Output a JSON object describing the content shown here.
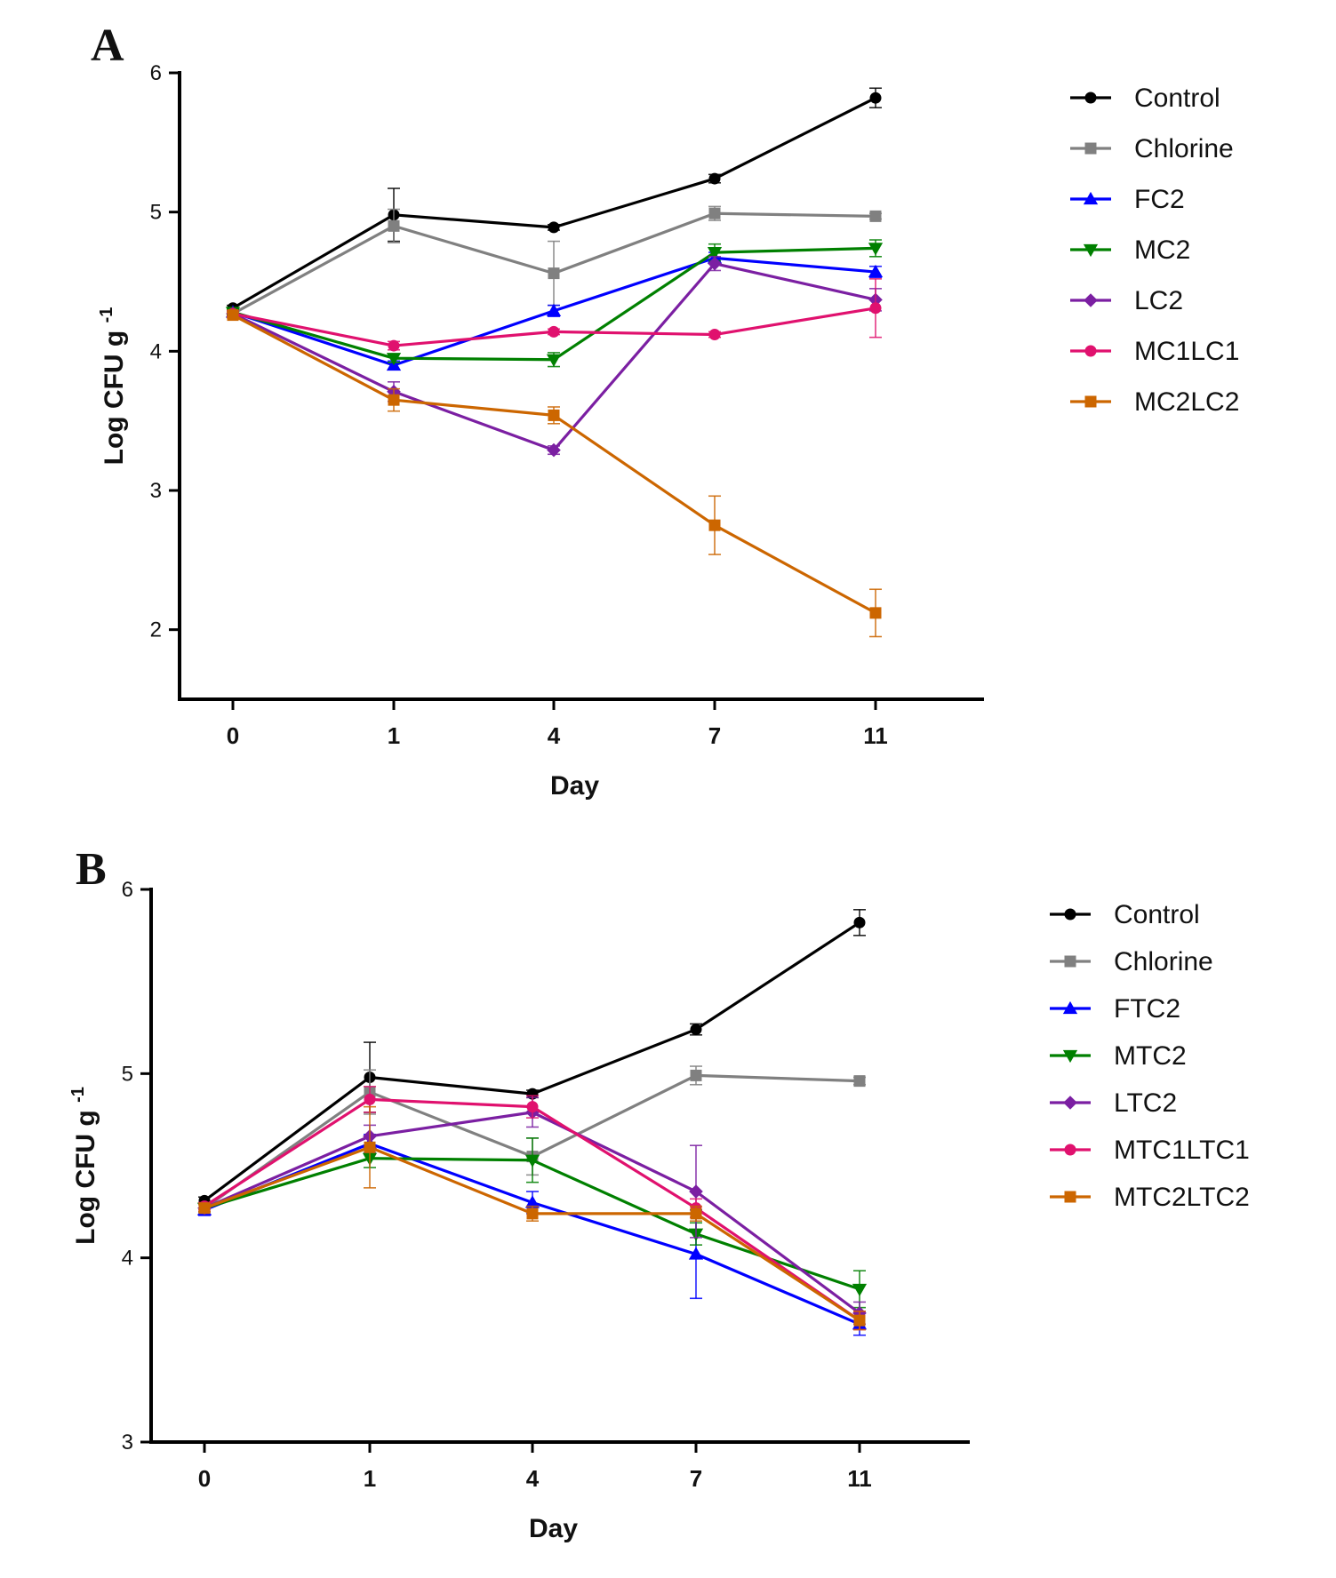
{
  "chart_data": [
    {
      "type": "line",
      "panel_label": "A",
      "xlabel": "Day",
      "ylabel": "Log CFU g",
      "ylabel_superscript": "-1",
      "categories": [
        "0",
        "1",
        "4",
        "7",
        "11"
      ],
      "ylim": [
        1.5,
        6
      ],
      "yticks": [
        2,
        3,
        4,
        5,
        6
      ],
      "grid": false,
      "legend_position": "right",
      "series": [
        {
          "name": "Control",
          "color": "#000000",
          "marker": "circle",
          "values": [
            4.31,
            4.98,
            4.89,
            5.24,
            5.82
          ],
          "errors": [
            0.02,
            0.19,
            0.02,
            0.03,
            0.07
          ]
        },
        {
          "name": "Chlorine",
          "color": "#808080",
          "marker": "square",
          "values": [
            4.27,
            4.9,
            4.56,
            4.99,
            4.97
          ],
          "errors": [
            0.02,
            0.12,
            0.23,
            0.05,
            0.02
          ]
        },
        {
          "name": "FC2",
          "color": "#0000ff",
          "marker": "triangle-up",
          "values": [
            4.28,
            3.9,
            4.29,
            4.67,
            4.57
          ],
          "errors": [
            0.02,
            0.03,
            0.04,
            0.04,
            0.04
          ]
        },
        {
          "name": "MC2",
          "color": "#008000",
          "marker": "triangle-down",
          "values": [
            4.28,
            3.95,
            3.94,
            4.71,
            4.74
          ],
          "errors": [
            0.02,
            0.03,
            0.05,
            0.06,
            0.06
          ]
        },
        {
          "name": "LC2",
          "color": "#7b1fa2",
          "marker": "diamond",
          "values": [
            4.27,
            3.71,
            3.29,
            4.63,
            4.37
          ],
          "errors": [
            0.02,
            0.07,
            0.03,
            0.05,
            0.08
          ]
        },
        {
          "name": "MC1LC1",
          "color": "#e0116e",
          "marker": "circle",
          "values": [
            4.27,
            4.04,
            4.14,
            4.12,
            4.31
          ],
          "errors": [
            0.02,
            0.03,
            0.02,
            0.02,
            0.21
          ]
        },
        {
          "name": "MC2LC2",
          "color": "#cc6600",
          "marker": "square",
          "values": [
            4.26,
            3.65,
            3.54,
            2.75,
            2.12
          ],
          "errors": [
            0.02,
            0.08,
            0.06,
            0.21,
            0.17
          ]
        }
      ]
    },
    {
      "type": "line",
      "panel_label": "B",
      "xlabel": "Day",
      "ylabel": "Log CFU g",
      "ylabel_superscript": "-1",
      "categories": [
        "0",
        "1",
        "4",
        "7",
        "11"
      ],
      "ylim": [
        3,
        6
      ],
      "yticks": [
        3,
        4,
        5,
        6
      ],
      "grid": false,
      "legend_position": "right",
      "series": [
        {
          "name": "Control",
          "color": "#000000",
          "marker": "circle",
          "values": [
            4.31,
            4.98,
            4.89,
            5.24,
            5.82
          ],
          "errors": [
            0.02,
            0.19,
            0.02,
            0.03,
            0.07
          ]
        },
        {
          "name": "Chlorine",
          "color": "#808080",
          "marker": "square",
          "values": [
            4.27,
            4.9,
            4.55,
            4.99,
            4.96
          ],
          "errors": [
            0.02,
            0.12,
            0.1,
            0.05,
            0.02
          ]
        },
        {
          "name": "FTC2",
          "color": "#0000ff",
          "marker": "triangle-up",
          "values": [
            4.26,
            4.62,
            4.3,
            4.02,
            3.64
          ],
          "errors": [
            0.03,
            0.05,
            0.06,
            0.24,
            0.06
          ]
        },
        {
          "name": "MTC2",
          "color": "#008000",
          "marker": "triangle-down",
          "values": [
            4.27,
            4.54,
            4.53,
            4.13,
            3.83
          ],
          "errors": [
            0.02,
            0.05,
            0.12,
            0.06,
            0.1
          ]
        },
        {
          "name": "LTC2",
          "color": "#7b1fa2",
          "marker": "diamond",
          "values": [
            4.27,
            4.66,
            4.79,
            4.36,
            3.7
          ],
          "errors": [
            0.02,
            0.06,
            0.08,
            0.25,
            0.06
          ]
        },
        {
          "name": "MTC1LTC1",
          "color": "#e0116e",
          "marker": "circle",
          "values": [
            4.28,
            4.86,
            4.82,
            4.27,
            3.66
          ],
          "errors": [
            0.02,
            0.07,
            0.06,
            0.05,
            0.05
          ]
        },
        {
          "name": "MTC2LTC2",
          "color": "#cc6600",
          "marker": "square",
          "values": [
            4.27,
            4.6,
            4.24,
            4.24,
            3.66
          ],
          "errors": [
            0.02,
            0.22,
            0.04,
            0.04,
            0.05
          ]
        }
      ]
    }
  ]
}
